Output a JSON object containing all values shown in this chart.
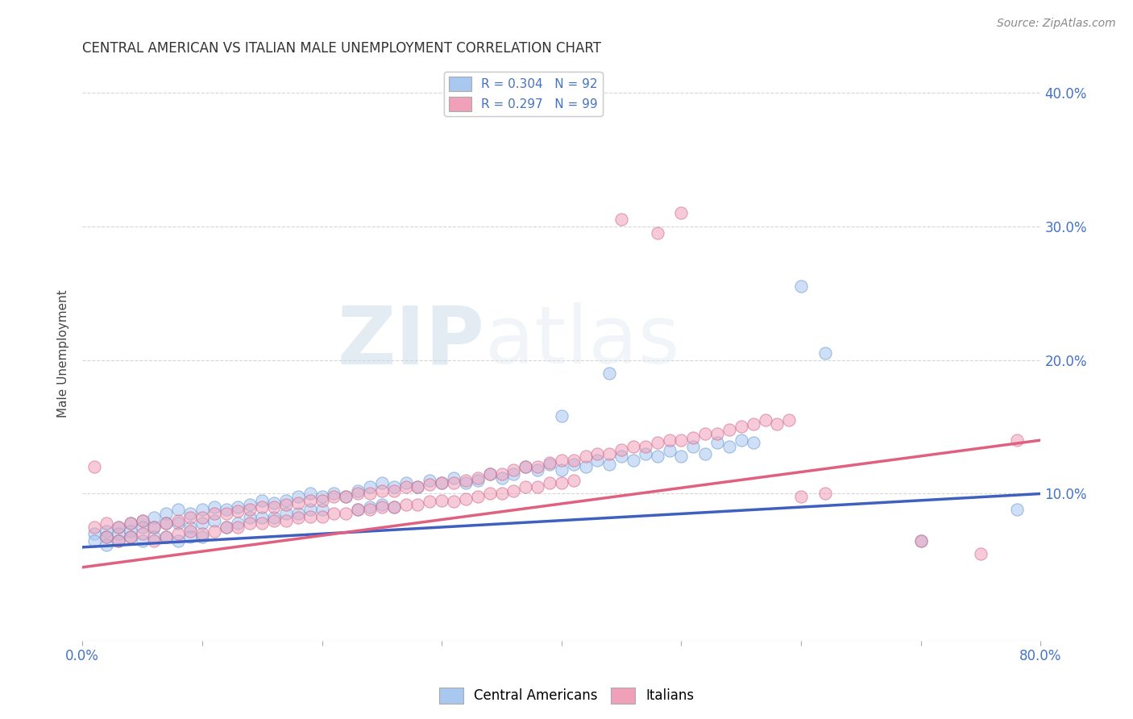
{
  "title": "CENTRAL AMERICAN VS ITALIAN MALE UNEMPLOYMENT CORRELATION CHART",
  "source": "Source: ZipAtlas.com",
  "ylabel": "Male Unemployment",
  "xlim": [
    0.0,
    0.8
  ],
  "ylim": [
    -0.01,
    0.42
  ],
  "ytick_positions": [
    0.1,
    0.2,
    0.3,
    0.4
  ],
  "ytick_labels": [
    "10.0%",
    "20.0%",
    "30.0%",
    "40.0%"
  ],
  "legend_label_1": "Central Americans",
  "legend_label_2": "Italians",
  "blue_color": "#a8c8f0",
  "pink_color": "#f0a0b8",
  "blue_edge_color": "#6090d0",
  "pink_edge_color": "#d06080",
  "blue_line_color": "#4060c0",
  "pink_line_color": "#e06080",
  "watermark_zip": "ZIP",
  "watermark_atlas": "atlas",
  "blue_scatter": [
    [
      0.01,
      0.07
    ],
    [
      0.01,
      0.065
    ],
    [
      0.02,
      0.072
    ],
    [
      0.02,
      0.068
    ],
    [
      0.02,
      0.062
    ],
    [
      0.03,
      0.075
    ],
    [
      0.03,
      0.07
    ],
    [
      0.03,
      0.065
    ],
    [
      0.04,
      0.078
    ],
    [
      0.04,
      0.072
    ],
    [
      0.04,
      0.068
    ],
    [
      0.05,
      0.08
    ],
    [
      0.05,
      0.075
    ],
    [
      0.05,
      0.065
    ],
    [
      0.06,
      0.082
    ],
    [
      0.06,
      0.075
    ],
    [
      0.06,
      0.068
    ],
    [
      0.07,
      0.085
    ],
    [
      0.07,
      0.078
    ],
    [
      0.07,
      0.068
    ],
    [
      0.08,
      0.088
    ],
    [
      0.08,
      0.078
    ],
    [
      0.08,
      0.065
    ],
    [
      0.09,
      0.085
    ],
    [
      0.09,
      0.075
    ],
    [
      0.09,
      0.068
    ],
    [
      0.1,
      0.088
    ],
    [
      0.1,
      0.078
    ],
    [
      0.1,
      0.068
    ],
    [
      0.11,
      0.09
    ],
    [
      0.11,
      0.08
    ],
    [
      0.12,
      0.088
    ],
    [
      0.12,
      0.075
    ],
    [
      0.13,
      0.09
    ],
    [
      0.13,
      0.078
    ],
    [
      0.14,
      0.092
    ],
    [
      0.14,
      0.082
    ],
    [
      0.15,
      0.095
    ],
    [
      0.15,
      0.082
    ],
    [
      0.16,
      0.093
    ],
    [
      0.16,
      0.082
    ],
    [
      0.17,
      0.095
    ],
    [
      0.17,
      0.085
    ],
    [
      0.18,
      0.098
    ],
    [
      0.18,
      0.085
    ],
    [
      0.19,
      0.1
    ],
    [
      0.19,
      0.088
    ],
    [
      0.2,
      0.098
    ],
    [
      0.2,
      0.088
    ],
    [
      0.21,
      0.1
    ],
    [
      0.22,
      0.098
    ],
    [
      0.23,
      0.102
    ],
    [
      0.23,
      0.088
    ],
    [
      0.24,
      0.105
    ],
    [
      0.24,
      0.09
    ],
    [
      0.25,
      0.108
    ],
    [
      0.25,
      0.092
    ],
    [
      0.26,
      0.105
    ],
    [
      0.26,
      0.09
    ],
    [
      0.27,
      0.108
    ],
    [
      0.28,
      0.105
    ],
    [
      0.29,
      0.11
    ],
    [
      0.3,
      0.108
    ],
    [
      0.31,
      0.112
    ],
    [
      0.32,
      0.108
    ],
    [
      0.33,
      0.11
    ],
    [
      0.34,
      0.115
    ],
    [
      0.35,
      0.112
    ],
    [
      0.36,
      0.115
    ],
    [
      0.37,
      0.12
    ],
    [
      0.38,
      0.118
    ],
    [
      0.39,
      0.122
    ],
    [
      0.4,
      0.118
    ],
    [
      0.41,
      0.122
    ],
    [
      0.42,
      0.12
    ],
    [
      0.43,
      0.125
    ],
    [
      0.44,
      0.122
    ],
    [
      0.45,
      0.128
    ],
    [
      0.46,
      0.125
    ],
    [
      0.47,
      0.13
    ],
    [
      0.48,
      0.128
    ],
    [
      0.49,
      0.132
    ],
    [
      0.5,
      0.128
    ],
    [
      0.51,
      0.135
    ],
    [
      0.52,
      0.13
    ],
    [
      0.53,
      0.138
    ],
    [
      0.54,
      0.135
    ],
    [
      0.55,
      0.14
    ],
    [
      0.56,
      0.138
    ],
    [
      0.4,
      0.158
    ],
    [
      0.44,
      0.19
    ],
    [
      0.6,
      0.255
    ],
    [
      0.62,
      0.205
    ],
    [
      0.7,
      0.065
    ],
    [
      0.78,
      0.088
    ]
  ],
  "pink_scatter": [
    [
      0.01,
      0.12
    ],
    [
      0.01,
      0.075
    ],
    [
      0.02,
      0.078
    ],
    [
      0.02,
      0.068
    ],
    [
      0.03,
      0.075
    ],
    [
      0.03,
      0.065
    ],
    [
      0.04,
      0.078
    ],
    [
      0.04,
      0.068
    ],
    [
      0.05,
      0.08
    ],
    [
      0.05,
      0.07
    ],
    [
      0.06,
      0.075
    ],
    [
      0.06,
      0.065
    ],
    [
      0.07,
      0.078
    ],
    [
      0.07,
      0.068
    ],
    [
      0.08,
      0.08
    ],
    [
      0.08,
      0.07
    ],
    [
      0.09,
      0.082
    ],
    [
      0.09,
      0.072
    ],
    [
      0.1,
      0.082
    ],
    [
      0.1,
      0.07
    ],
    [
      0.11,
      0.085
    ],
    [
      0.11,
      0.072
    ],
    [
      0.12,
      0.085
    ],
    [
      0.12,
      0.075
    ],
    [
      0.13,
      0.087
    ],
    [
      0.13,
      0.075
    ],
    [
      0.14,
      0.088
    ],
    [
      0.14,
      0.078
    ],
    [
      0.15,
      0.09
    ],
    [
      0.15,
      0.078
    ],
    [
      0.16,
      0.09
    ],
    [
      0.16,
      0.08
    ],
    [
      0.17,
      0.092
    ],
    [
      0.17,
      0.08
    ],
    [
      0.18,
      0.093
    ],
    [
      0.18,
      0.082
    ],
    [
      0.19,
      0.095
    ],
    [
      0.19,
      0.083
    ],
    [
      0.2,
      0.095
    ],
    [
      0.2,
      0.083
    ],
    [
      0.21,
      0.098
    ],
    [
      0.21,
      0.085
    ],
    [
      0.22,
      0.098
    ],
    [
      0.22,
      0.085
    ],
    [
      0.23,
      0.1
    ],
    [
      0.23,
      0.088
    ],
    [
      0.24,
      0.1
    ],
    [
      0.24,
      0.088
    ],
    [
      0.25,
      0.102
    ],
    [
      0.25,
      0.09
    ],
    [
      0.26,
      0.102
    ],
    [
      0.26,
      0.09
    ],
    [
      0.27,
      0.105
    ],
    [
      0.27,
      0.092
    ],
    [
      0.28,
      0.105
    ],
    [
      0.28,
      0.092
    ],
    [
      0.29,
      0.107
    ],
    [
      0.29,
      0.094
    ],
    [
      0.3,
      0.108
    ],
    [
      0.3,
      0.095
    ],
    [
      0.31,
      0.108
    ],
    [
      0.31,
      0.094
    ],
    [
      0.32,
      0.11
    ],
    [
      0.32,
      0.096
    ],
    [
      0.33,
      0.112
    ],
    [
      0.33,
      0.098
    ],
    [
      0.34,
      0.115
    ],
    [
      0.34,
      0.1
    ],
    [
      0.35,
      0.115
    ],
    [
      0.35,
      0.1
    ],
    [
      0.36,
      0.118
    ],
    [
      0.36,
      0.102
    ],
    [
      0.37,
      0.12
    ],
    [
      0.37,
      0.105
    ],
    [
      0.38,
      0.12
    ],
    [
      0.38,
      0.105
    ],
    [
      0.39,
      0.123
    ],
    [
      0.39,
      0.108
    ],
    [
      0.4,
      0.125
    ],
    [
      0.4,
      0.108
    ],
    [
      0.41,
      0.125
    ],
    [
      0.41,
      0.11
    ],
    [
      0.42,
      0.128
    ],
    [
      0.43,
      0.13
    ],
    [
      0.44,
      0.13
    ],
    [
      0.45,
      0.133
    ],
    [
      0.46,
      0.135
    ],
    [
      0.47,
      0.135
    ],
    [
      0.48,
      0.138
    ],
    [
      0.49,
      0.14
    ],
    [
      0.5,
      0.14
    ],
    [
      0.51,
      0.142
    ],
    [
      0.52,
      0.145
    ],
    [
      0.53,
      0.145
    ],
    [
      0.54,
      0.148
    ],
    [
      0.55,
      0.15
    ],
    [
      0.56,
      0.152
    ],
    [
      0.57,
      0.155
    ],
    [
      0.58,
      0.152
    ],
    [
      0.59,
      0.155
    ],
    [
      0.6,
      0.098
    ],
    [
      0.62,
      0.1
    ],
    [
      0.45,
      0.305
    ],
    [
      0.48,
      0.295
    ],
    [
      0.5,
      0.31
    ],
    [
      0.7,
      0.065
    ],
    [
      0.75,
      0.055
    ],
    [
      0.78,
      0.14
    ]
  ],
  "blue_trend": [
    0.0,
    0.06,
    0.8,
    0.1
  ],
  "pink_trend": [
    0.0,
    0.045,
    0.8,
    0.14
  ]
}
